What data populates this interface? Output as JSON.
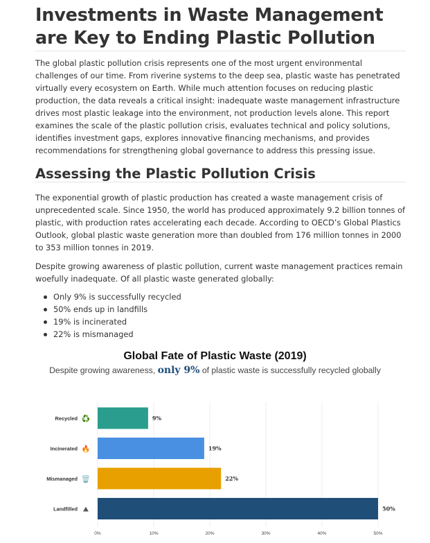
{
  "article": {
    "title": "Investments in Waste Management are Key to Ending Plastic Pollution",
    "intro": "The global plastic pollution crisis represents one of the most urgent environmental challenges of our time. From riverine systems to the deep sea, plastic waste has penetrated virtually every ecosystem on Earth. While much attention focuses on reducing plastic production, the data reveals a critical insight: inadequate waste management infrastructure drives most plastic leakage into the environment, not production levels alone. This report examines the scale of the plastic pollution crisis, evaluates technical and policy solutions, identifies investment gaps, explores innovative financing mechanisms, and provides recommendations for strengthening global governance to address this pressing issue.",
    "section_heading": "Assessing the Plastic Pollution Crisis",
    "paragraph_growth": "The exponential growth of plastic production has created a waste management crisis of unprecedented scale. Since 1950, the world has produced approximately 9.2 billion tonnes of plastic, with production rates accelerating each decade. According to OECD’s Global Plastics Outlook, global plastic waste generation more than doubled from 176 million tonnes in 2000 to 353 million tonnes in 2019.",
    "paragraph_despite": "Despite growing awareness of plastic pollution, current waste management practices remain woefully inadequate. Of all plastic waste generated globally:",
    "bullets": [
      "Only 9% is successfully recycled",
      "50% ends up in landfills",
      "19% is incinerated",
      "22% is mismanaged"
    ]
  },
  "chart_data": {
    "type": "bar",
    "orientation": "horizontal",
    "title": "Global Fate of Plastic Waste (2019)",
    "subtitle_prefix": "Despite growing awareness, ",
    "subtitle_highlight": "only 9%",
    "subtitle_suffix": " of plastic waste is successfully recycled globally",
    "categories": [
      "Recycled",
      "Incinerated",
      "Mismanaged",
      "Landfilled"
    ],
    "category_icons": [
      "recycle-icon",
      "fire-icon",
      "trash-icon",
      "landfill-icon"
    ],
    "category_glyphs": [
      "♻️",
      "🔥",
      "🗑️",
      "⛰"
    ],
    "values": [
      9,
      19,
      22,
      50
    ],
    "data_labels": [
      "9%",
      "19%",
      "22%",
      "50%"
    ],
    "colors": [
      "#2a9d8f",
      "#4a90e2",
      "#e8a000",
      "#1f4e79"
    ],
    "xlim": [
      0,
      50
    ],
    "x_ticks": [
      0,
      10,
      20,
      30,
      40,
      50
    ],
    "x_tick_labels": [
      "0%",
      "10%",
      "20%",
      "30%",
      "40%",
      "50%"
    ],
    "grid": true,
    "legend": "none"
  }
}
